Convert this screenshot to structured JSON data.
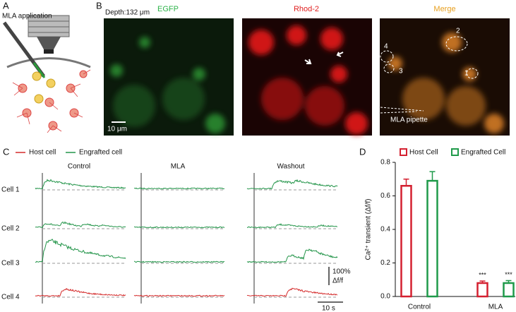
{
  "panel_labels": [
    "A",
    "B",
    "C",
    "D"
  ],
  "panel_a": {
    "title": "MLA application"
  },
  "panel_b": {
    "depth": "Depth:132 μm",
    "channels": [
      {
        "name": "EGFP",
        "color": "#2db34a"
      },
      {
        "name": "Rhod-2",
        "color": "#e02020"
      },
      {
        "name": "Merge",
        "color": "#e8a020"
      }
    ],
    "scale_bar": "10 μm",
    "cell_labels": [
      "1",
      "2",
      "3",
      "4"
    ],
    "pipette_label": "MLA pipette"
  },
  "panel_c": {
    "legend": [
      {
        "name": "Host cell",
        "color": "#d42a2a"
      },
      {
        "name": "Engrafted cell",
        "color": "#24954a"
      }
    ],
    "conditions": [
      "Control",
      "MLA",
      "Washout"
    ],
    "cells": [
      "Cell 1",
      "Cell 2",
      "Cell 3",
      "Cell 4"
    ],
    "scale_y": "100%",
    "scale_y_unit": "Δf/f",
    "scale_x": "10 s"
  },
  "chart_data": {
    "type": "bar",
    "ylabel": "Ca²⁺ transient (Δf/f)",
    "categories": [
      "Control",
      "MLA"
    ],
    "series": [
      {
        "name": "Host Cell",
        "color": "#d42030",
        "values": [
          0.66,
          0.08
        ],
        "errors": [
          0.04,
          0.012
        ],
        "significance": [
          null,
          "***"
        ]
      },
      {
        "name": "Engrafted Cell",
        "color": "#1f9a4a",
        "values": [
          0.69,
          0.08
        ],
        "errors": [
          0.055,
          0.015
        ],
        "significance": [
          null,
          "***"
        ]
      }
    ],
    "ylim": [
      0,
      0.8
    ],
    "yticks": [
      {
        "value": 0,
        "label": "0.0"
      },
      0.2,
      0.4,
      0.6,
      0.8
    ]
  }
}
